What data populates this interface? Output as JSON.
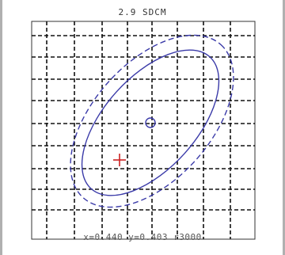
{
  "header": {
    "title": "2.9 SDCM"
  },
  "readout": {
    "text": "x=0.440 y=0.403 r3000"
  },
  "colors": {
    "grid": "#111111",
    "ellipse": "#3a3aa8",
    "target": "#cc2222",
    "frame": "#333333"
  },
  "chart_data": {
    "type": "scatter",
    "grid": true,
    "grid_style": "dashed",
    "target_marker": {
      "shape": "cross"
    },
    "measured_marker": {
      "shape": "circle"
    },
    "ellipses": [
      {
        "style": "solid"
      },
      {
        "style": "dashed"
      }
    ]
  }
}
